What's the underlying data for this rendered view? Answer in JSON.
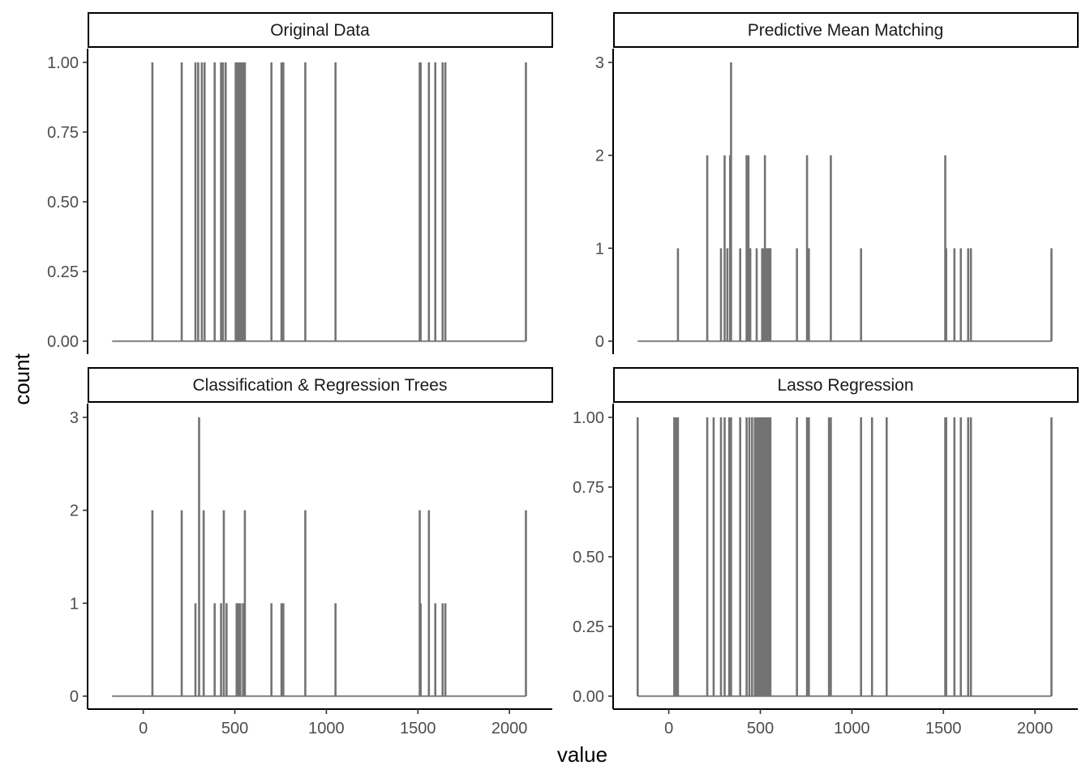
{
  "chart_data": {
    "type": "bar",
    "xlabel": "value",
    "ylabel": "count",
    "xlim": [
      -180,
      2110
    ],
    "x_ticks": [
      "0",
      "500",
      "1000",
      "1500",
      "2000"
    ],
    "x_tick_values": [
      0,
      500,
      1000,
      1500,
      2000
    ],
    "grid": false,
    "bar_color": "#737373",
    "baseline_color": "#8c8c8c",
    "panels": [
      {
        "title": "Original Data",
        "ylim": [
          0,
          1
        ],
        "y_ticks": [
          "0.00",
          "0.25",
          "0.50",
          "0.75",
          "1.00"
        ],
        "y_tick_values": [
          0,
          0.25,
          0.5,
          0.75,
          1
        ],
        "baseline_range": [
          -170,
          2090
        ],
        "x": [
          50,
          210,
          285,
          300,
          320,
          335,
          390,
          425,
          435,
          450,
          505,
          515,
          525,
          535,
          545,
          555,
          700,
          755,
          765,
          885,
          1050,
          1510,
          1515,
          1560,
          1595,
          1635,
          1650,
          2090
        ],
        "counts": [
          1,
          1,
          1,
          1,
          1,
          1,
          1,
          1,
          1,
          1,
          1,
          1,
          1,
          1,
          1,
          1,
          1,
          1,
          1,
          1,
          1,
          1,
          1,
          1,
          1,
          1,
          1,
          1
        ]
      },
      {
        "title": "Predictive Mean Matching",
        "ylim": [
          0,
          3
        ],
        "y_ticks": [
          "0",
          "1",
          "2",
          "3"
        ],
        "y_tick_values": [
          0,
          1,
          2,
          3
        ],
        "baseline_range": [
          -170,
          2090
        ],
        "x": [
          50,
          210,
          285,
          305,
          320,
          335,
          340,
          390,
          425,
          435,
          445,
          480,
          510,
          520,
          525,
          535,
          540,
          545,
          550,
          555,
          700,
          755,
          765,
          885,
          1050,
          1510,
          1515,
          1560,
          1595,
          1635,
          1650,
          2090
        ],
        "counts": [
          1,
          2,
          1,
          2,
          1,
          2,
          3,
          1,
          2,
          2,
          1,
          1,
          1,
          1,
          2,
          1,
          1,
          1,
          1,
          1,
          1,
          2,
          1,
          2,
          1,
          2,
          1,
          1,
          1,
          1,
          1,
          1
        ]
      },
      {
        "title": "Classification & Regression Trees",
        "ylim": [
          0,
          3
        ],
        "y_ticks": [
          "0",
          "1",
          "2",
          "3"
        ],
        "y_tick_values": [
          0,
          1,
          2,
          3
        ],
        "baseline_range": [
          -170,
          2090
        ],
        "x": [
          50,
          210,
          285,
          305,
          330,
          390,
          425,
          440,
          455,
          510,
          520,
          530,
          545,
          555,
          700,
          755,
          765,
          885,
          1050,
          1510,
          1515,
          1560,
          1595,
          1635,
          1650,
          2090
        ],
        "counts": [
          2,
          2,
          1,
          3,
          2,
          1,
          1,
          2,
          1,
          1,
          1,
          1,
          1,
          2,
          1,
          1,
          1,
          2,
          1,
          2,
          1,
          2,
          1,
          1,
          1,
          2
        ]
      },
      {
        "title": "Lasso Regression",
        "ylim": [
          0,
          1
        ],
        "y_ticks": [
          "0.00",
          "0.25",
          "0.50",
          "0.75",
          "1.00"
        ],
        "y_tick_values": [
          0,
          0.25,
          0.5,
          0.75,
          1
        ],
        "baseline_range": [
          -170,
          2090
        ],
        "x": [
          -170,
          30,
          40,
          50,
          210,
          245,
          285,
          305,
          330,
          340,
          390,
          425,
          440,
          455,
          470,
          480,
          490,
          500,
          510,
          515,
          520,
          525,
          530,
          535,
          540,
          545,
          550,
          555,
          700,
          755,
          765,
          875,
          885,
          1050,
          1110,
          1190,
          1510,
          1515,
          1560,
          1595,
          1635,
          1650,
          2090
        ],
        "counts": [
          1,
          1,
          1,
          1,
          1,
          1,
          1,
          1,
          1,
          1,
          1,
          1,
          1,
          1,
          1,
          1,
          1,
          1,
          1,
          1,
          1,
          1,
          1,
          1,
          1,
          1,
          1,
          1,
          1,
          1,
          1,
          1,
          1,
          1,
          1,
          1,
          1,
          1,
          1,
          1,
          1,
          1,
          1
        ]
      }
    ]
  }
}
